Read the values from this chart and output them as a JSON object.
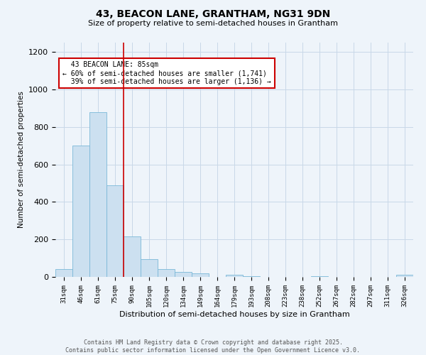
{
  "title1": "43, BEACON LANE, GRANTHAM, NG31 9DN",
  "title2": "Size of property relative to semi-detached houses in Grantham",
  "xlabel": "Distribution of semi-detached houses by size in Grantham",
  "ylabel": "Number of semi-detached properties",
  "bins": [
    "31sqm",
    "46sqm",
    "61sqm",
    "75sqm",
    "90sqm",
    "105sqm",
    "120sqm",
    "134sqm",
    "149sqm",
    "164sqm",
    "179sqm",
    "193sqm",
    "208sqm",
    "223sqm",
    "238sqm",
    "252sqm",
    "267sqm",
    "282sqm",
    "297sqm",
    "311sqm",
    "326sqm"
  ],
  "values": [
    40,
    700,
    880,
    490,
    215,
    95,
    42,
    25,
    20,
    0,
    10,
    5,
    0,
    0,
    0,
    5,
    0,
    0,
    0,
    0,
    10
  ],
  "bar_color": "#cce0f0",
  "bar_edge_color": "#7ab8d8",
  "property_label": "43 BEACON LANE: 85sqm",
  "pct_smaller": 60,
  "pct_larger": 39,
  "count_smaller": 1741,
  "count_larger": 1136,
  "vline_color": "#cc0000",
  "annotation_box_color": "#ffffff",
  "annotation_box_edge": "#cc0000",
  "grid_color": "#c8d8e8",
  "bg_color": "#eef4fa",
  "ylim": [
    0,
    1250
  ],
  "yticks": [
    0,
    200,
    400,
    600,
    800,
    1000,
    1200
  ],
  "vline_bin_index": 3.5,
  "footer1": "Contains HM Land Registry data © Crown copyright and database right 2025.",
  "footer2": "Contains public sector information licensed under the Open Government Licence v3.0."
}
